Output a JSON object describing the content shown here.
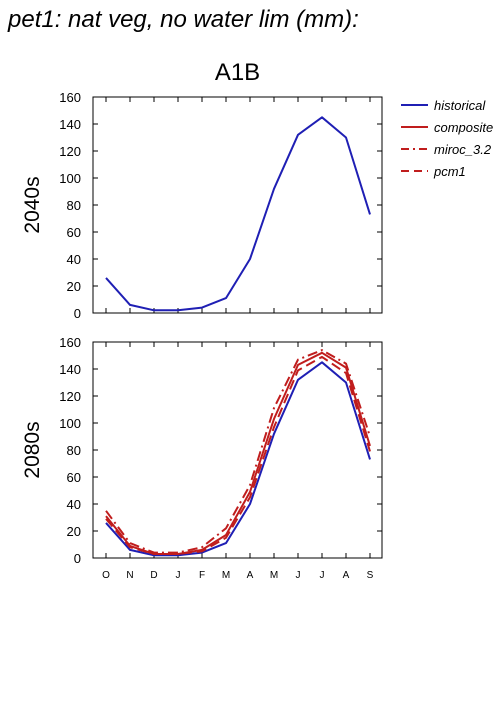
{
  "title": "pet1: nat veg, no water lim (mm):",
  "chart_data": {
    "type": "line",
    "scenario": "A1B",
    "categories": [
      "O",
      "N",
      "D",
      "J",
      "F",
      "M",
      "A",
      "M",
      "J",
      "J",
      "A",
      "S"
    ],
    "ylim": [
      0,
      160
    ],
    "yticks": [
      0,
      20,
      40,
      60,
      80,
      100,
      120,
      140,
      160
    ],
    "legend": {
      "placement": "right",
      "entries": [
        {
          "name": "historical",
          "color": "#1f1fb4",
          "style": "solid"
        },
        {
          "name": "composite",
          "color": "#c01d1d",
          "style": "solid"
        },
        {
          "name": "miroc_3.2",
          "color": "#c01d1d",
          "style": "dashdot"
        },
        {
          "name": "pcm1",
          "color": "#c01d1d",
          "style": "dashed"
        }
      ]
    },
    "panels": [
      {
        "label": "2040s",
        "series": [
          {
            "name": "historical",
            "values": [
              26,
              6,
              2,
              2,
              4,
              11,
              40,
              92,
              132,
              145,
              130,
              73
            ]
          }
        ]
      },
      {
        "label": "2080s",
        "series": [
          {
            "name": "historical",
            "values": [
              26,
              6,
              2,
              2,
              4,
              11,
              40,
              92,
              132,
              145,
              130,
              73
            ]
          },
          {
            "name": "composite",
            "values": [
              31,
              9,
              3,
              3,
              6,
              17,
              49,
              103,
              143,
              152,
              141,
              83
            ]
          },
          {
            "name": "miroc_3.2",
            "values": [
              35,
              11,
              4,
              4,
              8,
              22,
              54,
              111,
              147,
              154,
              144,
              90
            ]
          },
          {
            "name": "pcm1",
            "values": [
              29,
              8,
              3,
              3,
              5,
              15,
              45,
              97,
              139,
              149,
              137,
              79
            ]
          }
        ]
      }
    ]
  }
}
